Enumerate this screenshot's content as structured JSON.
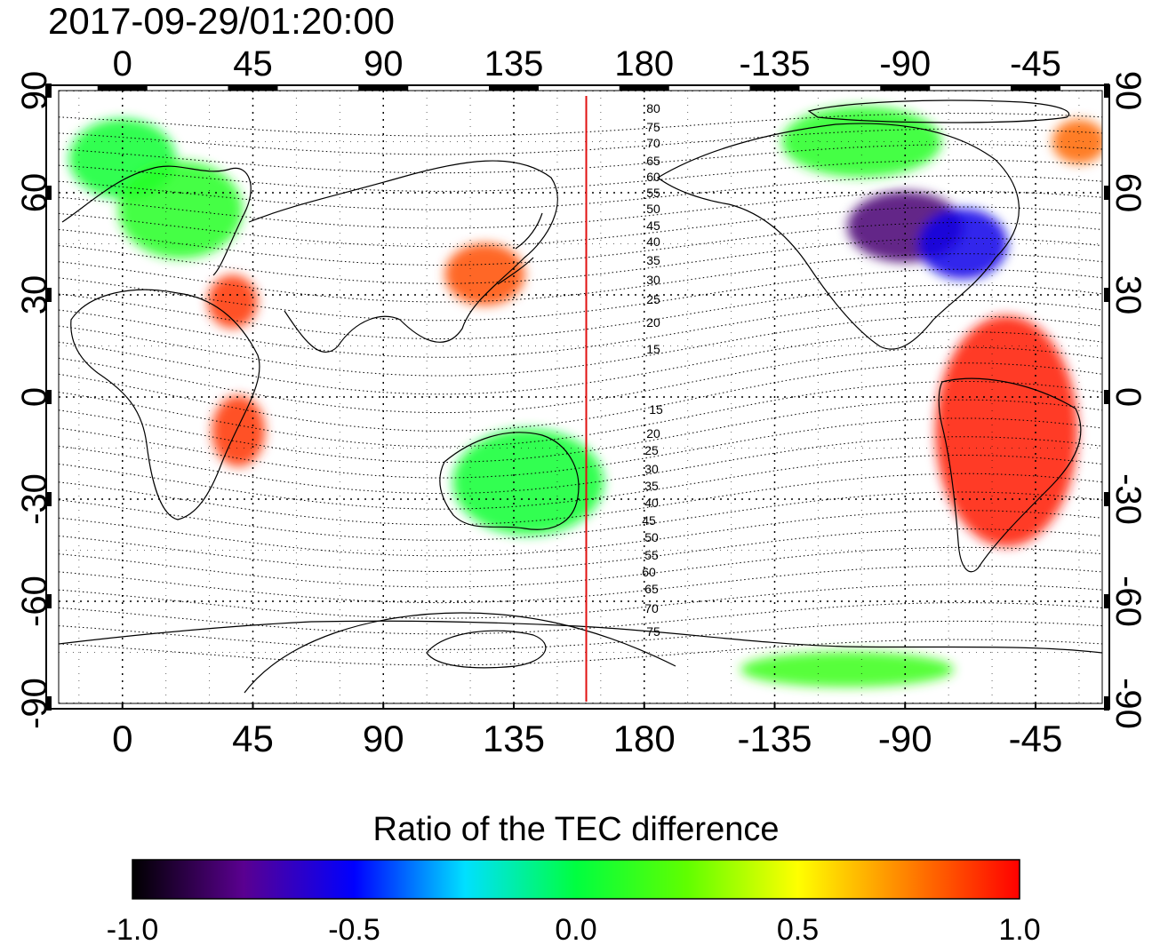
{
  "timestamp": "2017-09-29/01:20:00",
  "lon_ticks_top": [
    "0",
    "45",
    "90",
    "135",
    "180",
    "-135",
    "-90",
    "-45"
  ],
  "lon_ticks_bottom": [
    "0",
    "45",
    "90",
    "135",
    "180",
    "-135",
    "-90",
    "-45"
  ],
  "lat_ticks_left": [
    "90",
    "60",
    "30",
    "0",
    "-30",
    "-60",
    "-90"
  ],
  "lat_ticks_right": [
    "90",
    "60",
    "30",
    "0",
    "-30",
    "-60",
    "-90"
  ],
  "lon_tick_values": [
    0,
    45,
    90,
    135,
    180,
    225,
    270,
    315
  ],
  "lat_tick_values": [
    90,
    60,
    30,
    0,
    -30,
    -60,
    -90
  ],
  "lon_range": [
    -22,
    338
  ],
  "lat_range": [
    -90,
    90
  ],
  "meridian_marker_lon": 160,
  "magnetic_lat_labels_north": [
    "80",
    "75",
    "70",
    "65",
    "60",
    "55",
    "50",
    "45",
    "40",
    "35",
    "30",
    "25",
    "20",
    "15"
  ],
  "magnetic_lat_labels_south": [
    "15",
    "20",
    "25",
    "30",
    "35",
    "40",
    "45",
    "50",
    "55",
    "60",
    "65",
    "70",
    "75"
  ],
  "colorbar": {
    "title": "Ratio of the TEC difference",
    "tick_labels": [
      "-1.0",
      "-0.5",
      "0.0",
      "0.5",
      "1.0"
    ],
    "tick_values": [
      -1.0,
      -0.5,
      0.0,
      0.5,
      1.0
    ],
    "colors": [
      "#000000",
      "#5a0090",
      "#0000ff",
      "#00e0ff",
      "#00ff40",
      "#60ff00",
      "#ffff00",
      "#ff8000",
      "#ff0000"
    ]
  },
  "regions": [
    {
      "lon": 0,
      "lat": 70,
      "value": 0.05
    },
    {
      "lon": 20,
      "lat": 55,
      "value": 0.1
    },
    {
      "lon": 38,
      "lat": 28,
      "value": 0.9
    },
    {
      "lon": 125,
      "lat": 36,
      "value": 0.85
    },
    {
      "lon": 140,
      "lat": -25,
      "value": 0.05
    },
    {
      "lon": 270,
      "lat": 50,
      "value": -0.8
    },
    {
      "lon": 290,
      "lat": 45,
      "value": -0.55
    },
    {
      "lon": 305,
      "lat": -10,
      "value": 0.95
    },
    {
      "lon": 255,
      "lat": 75,
      "value": 0.1
    },
    {
      "lon": 250,
      "lat": -80,
      "value": 0.15
    },
    {
      "lon": 40,
      "lat": -10,
      "value": 0.9
    },
    {
      "lon": 330,
      "lat": 75,
      "value": 0.8
    }
  ]
}
